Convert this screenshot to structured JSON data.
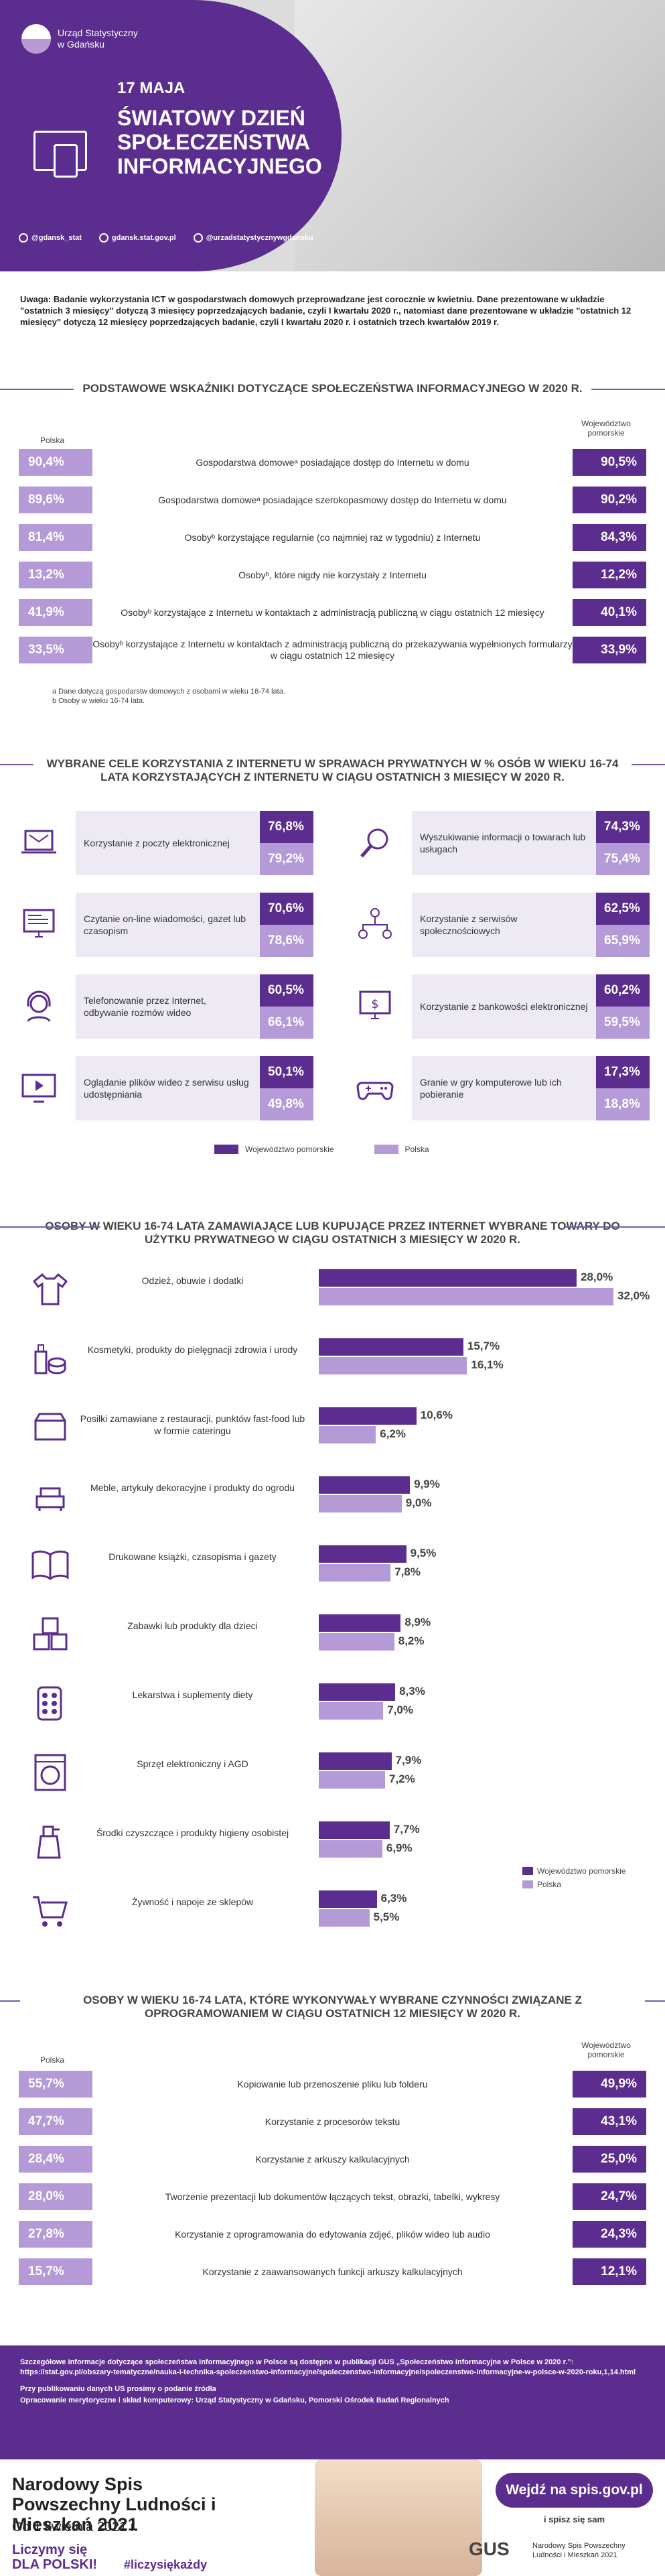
{
  "header": {
    "org": [
      "Urząd Statystyczny",
      "w Gdańsku"
    ],
    "date": "17 MAJA",
    "title": "ŚWIATOWY DZIEŃ SPOŁECZEŃSTWA INFORMACYJNEGO",
    "social": [
      "@gdansk_stat",
      "gdansk.stat.gov.pl",
      "@urzadstatystycznywgdansku"
    ]
  },
  "note": "Uwaga: Badanie wykorzystania ICT w gospodarstwach domowych przeprowadzane jest corocznie w kwietniu. Dane prezentowane w układzie \"ostatnich 3 miesięcy\" dotyczą 3 miesięcy poprzedzających badanie, czyli I kwartału 2020 r., natomiast dane prezentowane w układzie \"ostatnich 12 miesięcy\" dotyczą 12 miesięcy poprzedzających badanie, czyli I kwartału 2020 r. i ostatnich trzech kwartałów 2019 r.",
  "s1": {
    "title": "PODSTAWOWE WSKAŹNIKI DOTYCZĄCE SPOŁECZEŃSTWA INFORMACYJNEGO W 2020 R.",
    "col_left": "Polska",
    "col_right": "Województwo pomorskie",
    "rows": [
      {
        "pl": "90,4%",
        "label": "Gospodarstwa domoweᵃ posiadające dostęp do Internetu w domu",
        "pm": "90,5%"
      },
      {
        "pl": "89,6%",
        "label": "Gospodarstwa domoweᵃ posiadające szerokopasmowy dostęp do Internetu w domu",
        "pm": "90,2%"
      },
      {
        "pl": "81,4%",
        "label": "Osobyᵇ korzystające regularnie (co najmniej raz w tygodniu) z Internetu",
        "pm": "84,3%"
      },
      {
        "pl": "13,2%",
        "label": "Osobyᵇ, które nigdy nie korzystały z Internetu",
        "pm": "12,2%"
      },
      {
        "pl": "41,9%",
        "label": "Osobyᵇ korzystające z Internetu w kontaktach z administracją publiczną w ciągu ostatnich 12 miesięcy",
        "pm": "40,1%"
      },
      {
        "pl": "33,5%",
        "label": "Osobyᵇ korzystające z Internetu w kontaktach z administracją publiczną do przekazywania wypełnionych formularzy w ciągu ostatnich 12 miesięcy",
        "pm": "33,9%"
      }
    ],
    "fn_a": "a Dane dotyczą gospodarstw domowych z osobami w wieku 16-74 lata.",
    "fn_b": "b Osoby w wieku 16-74 lata."
  },
  "s2": {
    "title": "WYBRANE CELE KORZYSTANIA Z INTERNETU W SPRAWACH PRYWATNYCH W % OSÓB W WIEKU 16-74 LATA KORZYSTAJĄCYCH Z INTERNETU W CIĄGU OSTATNICH 3 MIESIĘCY W 2020 R.",
    "cards": [
      {
        "label": "Korzystanie z poczty elektronicznej",
        "pm": "76,8%",
        "pl": "79,2%",
        "icon": "laptop-mail-icon"
      },
      {
        "label": "Wyszukiwanie informacji o towarach lub usługach",
        "pm": "74,3%",
        "pl": "75,4%",
        "icon": "magnifier-icon"
      },
      {
        "label": "Czytanie on-line wiadomości, gazet lub czasopism",
        "pm": "70,6%",
        "pl": "78,6%",
        "icon": "monitor-news-icon"
      },
      {
        "label": "Korzystanie z serwisów społecznościowych",
        "pm": "62,5%",
        "pl": "65,9%",
        "icon": "social-network-icon"
      },
      {
        "label": "Telefonowanie przez Internet, odbywanie rozmów wideo",
        "pm": "60,5%",
        "pl": "66,1%",
        "icon": "headset-icon"
      },
      {
        "label": "Korzystanie z bankowości elektronicznej",
        "pm": "60,2%",
        "pl": "59,5%",
        "icon": "bank-monitor-icon"
      },
      {
        "label": "Oglądanie plików wideo z serwisu usług udostępniania",
        "pm": "50,1%",
        "pl": "49,8%",
        "icon": "video-play-icon"
      },
      {
        "label": "Granie w gry komputerowe lub ich pobieranie",
        "pm": "17,3%",
        "pl": "18,8%",
        "icon": "gamepad-icon"
      }
    ],
    "legend": [
      "Województwo pomorskie",
      "Polska"
    ]
  },
  "s3": {
    "title": "OSOBY W WIEKU 16-74 LATA ZAMAWIAJĄCE LUB KUPUJĄCE PRZEZ INTERNET WYBRANE TOWARY DO UŻYTKU PRYWATNEGO W CIĄGU OSTATNICH 3 MIESIĘCY W 2020 R.",
    "legend": [
      "Województwo pomorskie",
      "Polska"
    ]
  },
  "chart_data": {
    "type": "bar",
    "orientation": "horizontal",
    "categories": [
      "Odzież, obuwie i dodatki",
      "Kosmetyki, produkty do pielęgnacji zdrowia i urody",
      "Posiłki zamawiane z restauracji, punktów fast-food lub w formie cateringu",
      "Meble, artykuły dekoracyjne i produkty do ogrodu",
      "Drukowane książki, czasopisma i gazety",
      "Zabawki lub produkty dla dzieci",
      "Lekarstwa i suplementy diety",
      "Sprzęt elektroniczny i AGD",
      "Środki czyszczące i produkty higieny osobistej",
      "Żywność i napoje ze sklepów"
    ],
    "icons": [
      "clothes-icon",
      "cosmetics-icon",
      "food-delivery-icon",
      "furniture-icon",
      "book-icon",
      "toy-blocks-icon",
      "pills-icon",
      "washing-machine-icon",
      "cleaning-spray-icon",
      "shopping-cart-icon"
    ],
    "series": [
      {
        "name": "Województwo pomorskie",
        "color": "#5b2d8e",
        "values": [
          28.0,
          15.7,
          10.6,
          9.9,
          9.5,
          8.9,
          8.3,
          7.9,
          7.7,
          6.3
        ]
      },
      {
        "name": "Polska",
        "color": "#b59ad8",
        "values": [
          32.0,
          16.1,
          6.2,
          9.0,
          7.8,
          8.2,
          7.0,
          7.2,
          6.9,
          5.5
        ]
      }
    ],
    "labels_pm": [
      "28,0%",
      "15,7%",
      "10,6%",
      "9,9%",
      "9,5%",
      "8,9%",
      "8,3%",
      "7,9%",
      "7,7%",
      "6,3%"
    ],
    "labels_pl": [
      "32,0%",
      "16,1%",
      "6,2%",
      "9,0%",
      "7,8%",
      "8,2%",
      "7,0%",
      "7,2%",
      "6,9%",
      "5,5%"
    ],
    "unit": "%",
    "xlim": [
      0,
      32
    ]
  },
  "s4": {
    "title": "OSOBY W WIEKU 16-74 LATA, KTÓRE WYKONYWAŁY WYBRANE CZYNNOŚCI ZWIĄZANE Z OPROGRAMOWANIEM W CIĄGU OSTATNICH 12 MIESIĘCY W 2020 R.",
    "col_left": "Polska",
    "col_right": "Województwo pomorskie",
    "rows": [
      {
        "pl": "55,7%",
        "label": "Kopiowanie lub przenoszenie pliku lub folderu",
        "pm": "49,9%"
      },
      {
        "pl": "47,7%",
        "label": "Korzystanie z procesorów tekstu",
        "pm": "43,1%"
      },
      {
        "pl": "28,4%",
        "label": "Korzystanie z arkuszy kalkulacyjnych",
        "pm": "25,0%"
      },
      {
        "pl": "28,0%",
        "label": "Tworzenie prezentacji lub dokumentów łączących tekst, obrazki, tabelki, wykresy",
        "pm": "24,7%"
      },
      {
        "pl": "27,8%",
        "label": "Korzystanie z oprogramowania do edytowania zdjęć, plików wideo lub audio",
        "pm": "24,3%"
      },
      {
        "pl": "15,7%",
        "label": "Korzystanie z zaawansowanych funkcji arkuszy kalkulacyjnych",
        "pm": "12,1%"
      }
    ]
  },
  "footer": {
    "p1": "Szczegółowe informacje dotyczące społeczeństwa informacyjnego w Polsce są dostępne w publikacji GUS „Społeczeństwo informacyjne w Polsce w 2020 r.”: https://stat.gov.pl/obszary-tematyczne/nauka-i-technika-spoleczenstwo-informacyjne/spoleczenstwo-informacyjne/spoleczenstwo-informacyjne-w-polsce-w-2020-roku,1,14.html",
    "p2": "Przy publikowaniu danych US prosimy o podanie źródła",
    "p3": "Opracowanie merytoryczne i skład komputerowy: Urząd Statystyczny w Gdańsku, Pomorski Ośrodek Badań Regionalnych"
  },
  "banner": {
    "title": "Narodowy Spis Powszechny Ludności i Mieszkań 2021",
    "from": "Od 1 kwietnia 2021 r.",
    "slogan1": "Liczymy się",
    "slogan2": "DLA POLSKI!",
    "hashtag": "#liczysiękażdy",
    "cta": "Wejdź na spis.gov.pl",
    "cta_sub": "i spisz się sam",
    "gus": "GUS",
    "gus_sub": "Narodowy Spis Powszechny Ludności i Mieszkań 2021"
  }
}
